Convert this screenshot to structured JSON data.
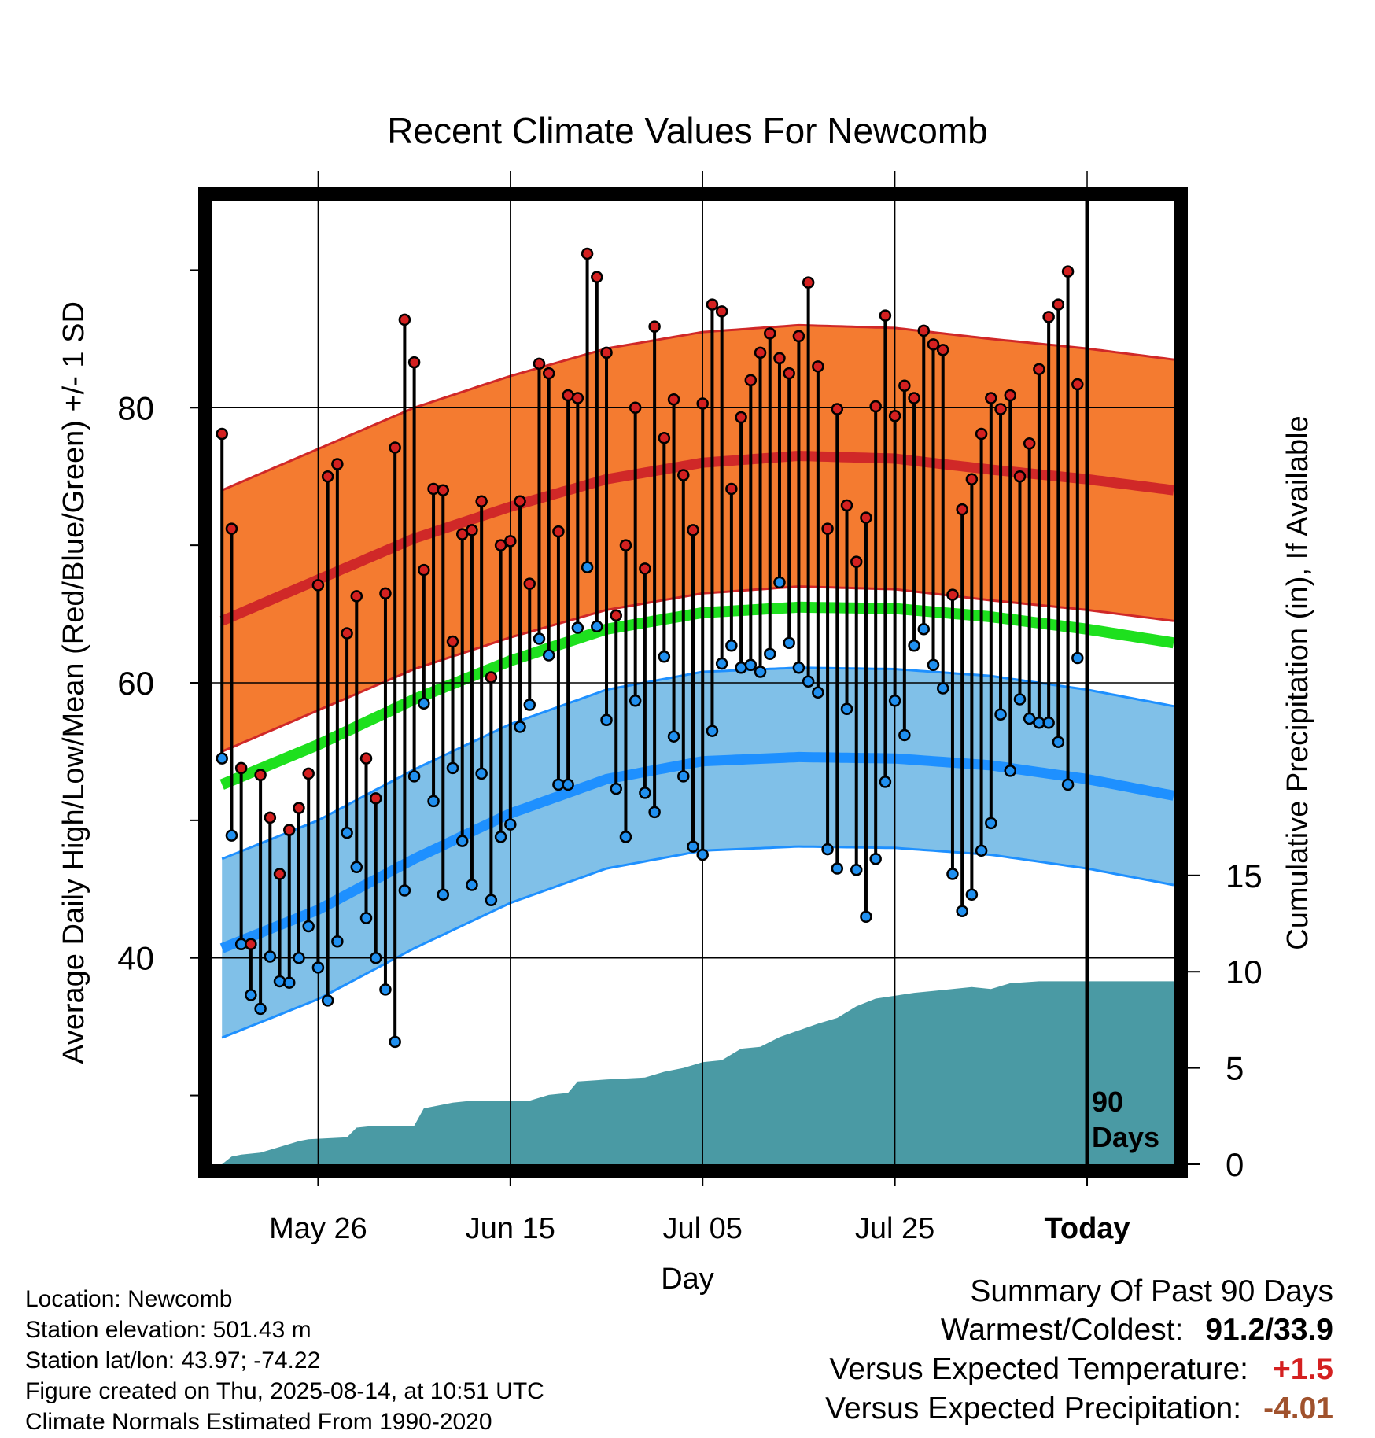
{
  "chart_data": {
    "type": "line",
    "title": "Recent Climate Values For Newcomb",
    "xlabel": "Day",
    "ylabel": "Average Daily High/Low/Mean (Red/Blue/Green) +/- 1 SD",
    "y2label": "Cumulative Precipitation (in), If Available",
    "ylim": [
      25,
      95
    ],
    "y2lim": [
      0,
      50
    ],
    "yticks": [
      {
        "v": 40,
        "label": "40"
      },
      {
        "v": 60,
        "label": "60"
      },
      {
        "v": 80,
        "label": "80"
      }
    ],
    "yminor": [
      30,
      50,
      70,
      90
    ],
    "y2ticks": [
      {
        "v": 0,
        "label": "0"
      },
      {
        "v": 5,
        "label": "5"
      },
      {
        "v": 10,
        "label": "10"
      },
      {
        "v": 15,
        "label": "15"
      }
    ],
    "xticks": [
      {
        "day": 10,
        "label": "May 26"
      },
      {
        "day": 30,
        "label": "Jun 15"
      },
      {
        "day": 50,
        "label": "Jul 05"
      },
      {
        "day": 70,
        "label": "Jul 25"
      },
      {
        "day": 90,
        "label": "Today"
      }
    ],
    "xlim": [
      -1,
      99
    ],
    "today_marker": {
      "day": 90,
      "label_line1": "90",
      "label_line2": "Days"
    },
    "colors": {
      "high_band": "#f47b30",
      "high_line": "#d02828",
      "low_band": "#80c0e8",
      "low_line": "#1e90ff",
      "mean_line": "#1ee01e",
      "precip": "#4a9aa4",
      "high_dot": "#d42020",
      "low_dot": "#2090f0"
    },
    "normals": {
      "days": [
        0,
        10,
        20,
        30,
        40,
        50,
        60,
        70,
        80,
        90,
        99
      ],
      "high_mean": [
        64.5,
        67.5,
        70.5,
        72.8,
        74.8,
        76.0,
        76.5,
        76.3,
        75.5,
        74.8,
        74.0
      ],
      "high_sd": 9.5,
      "low_mean": [
        40.7,
        43.5,
        47.2,
        50.5,
        53.0,
        54.3,
        54.6,
        54.5,
        54.0,
        53.0,
        51.8
      ],
      "low_sd": 6.5,
      "mean": [
        52.6,
        55.5,
        58.8,
        61.6,
        63.9,
        65.1,
        65.5,
        65.4,
        64.8,
        63.9,
        62.9
      ]
    },
    "series": [
      {
        "name": "High",
        "values": [
          78.1,
          71.2,
          53.8,
          41.0,
          53.3,
          50.2,
          46.1,
          49.3,
          50.9,
          53.4,
          67.1,
          75.0,
          75.9,
          63.6,
          66.3,
          54.5,
          51.6,
          66.5,
          77.1,
          86.4,
          83.3,
          68.2,
          74.1,
          74.0,
          63.0,
          70.8,
          71.1,
          73.2,
          60.4,
          70.0,
          70.3,
          73.2,
          67.2,
          83.2,
          82.5,
          71.0,
          80.9,
          80.7,
          91.2,
          89.5,
          84.0,
          64.9,
          70.0,
          80.0,
          68.3,
          85.9,
          77.8,
          80.6,
          75.1,
          71.1,
          80.3,
          87.5,
          87.0,
          74.1,
          79.3,
          82.0,
          84.0,
          85.4,
          83.6,
          82.5,
          85.2,
          89.1,
          83.0,
          71.2,
          79.9,
          72.9,
          68.8,
          72.0,
          80.1,
          86.7,
          79.4,
          81.6,
          80.7,
          85.6,
          84.6,
          84.2,
          66.4,
          72.6,
          74.8,
          78.1,
          80.7,
          79.9,
          80.9,
          75.0,
          77.4,
          82.8,
          86.6,
          87.5,
          89.9,
          81.7
        ]
      },
      {
        "name": "Low",
        "values": [
          54.5,
          48.9,
          41.0,
          37.3,
          36.3,
          40.1,
          38.3,
          38.2,
          40.0,
          42.3,
          39.3,
          36.9,
          41.2,
          49.1,
          46.6,
          42.9,
          40.0,
          37.7,
          33.9,
          44.9,
          53.2,
          58.5,
          51.4,
          44.6,
          53.8,
          48.5,
          45.3,
          53.4,
          44.2,
          48.8,
          49.7,
          56.8,
          58.4,
          63.2,
          62.0,
          52.6,
          52.6,
          64.0,
          68.4,
          64.1,
          57.3,
          52.3,
          48.8,
          58.7,
          52.0,
          50.6,
          61.9,
          56.1,
          53.2,
          48.1,
          47.5,
          56.5,
          61.4,
          62.7,
          61.1,
          61.3,
          60.8,
          62.1,
          67.3,
          62.9,
          61.1,
          60.1,
          59.3,
          47.9,
          46.5,
          58.1,
          46.4,
          43.0,
          47.2,
          52.8,
          58.7,
          56.2,
          62.7,
          63.9,
          61.3,
          59.6,
          46.1,
          43.4,
          44.6,
          47.8,
          49.8,
          57.7,
          53.6,
          58.8,
          57.4,
          57.1,
          57.1,
          55.7,
          52.6,
          61.8
        ]
      }
    ],
    "precip": {
      "days": [
        0,
        1,
        2,
        4,
        6,
        8,
        9,
        13,
        14,
        16,
        20,
        21,
        24,
        26,
        32,
        34,
        36,
        37,
        40,
        44,
        46,
        48,
        50,
        52,
        54,
        56,
        58,
        62,
        64,
        66,
        68,
        72,
        74,
        78,
        80,
        82,
        85,
        99
      ],
      "values": [
        0.0,
        0.4,
        0.5,
        0.6,
        0.9,
        1.2,
        1.3,
        1.4,
        1.9,
        2.0,
        2.0,
        2.9,
        3.2,
        3.3,
        3.3,
        3.6,
        3.7,
        4.3,
        4.4,
        4.5,
        4.8,
        5.0,
        5.3,
        5.4,
        6.0,
        6.1,
        6.6,
        7.3,
        7.6,
        8.2,
        8.6,
        8.9,
        9.0,
        9.2,
        9.1,
        9.4,
        9.5,
        9.5
      ]
    }
  },
  "info": {
    "location": "Location: Newcomb",
    "elevation": "Station elevation: 501.43 m",
    "latlon": "Station lat/lon: 43.97; -74.22",
    "created": "Figure created on Thu, 2025-08-14, at 10:51 UTC",
    "normals": "Climate Normals Estimated From 1990-2020"
  },
  "summary": {
    "title": "Summary Of Past 90 Days",
    "warm_cold_label": "Warmest/Coldest:",
    "warm_cold_value": "91.2/33.9",
    "temp_label": "Versus Expected Temperature:",
    "temp_value": "+1.5",
    "temp_color": "#d42020",
    "precip_label": "Versus Expected Precipitation:",
    "precip_value": "-4.01",
    "precip_color": "#a0522d"
  }
}
